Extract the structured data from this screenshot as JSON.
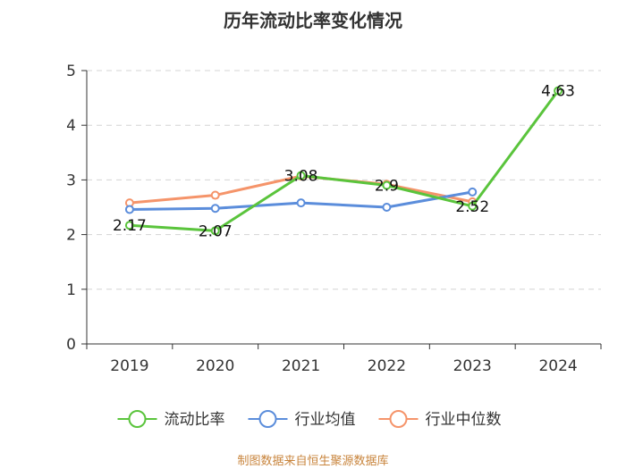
{
  "chart_data": {
    "type": "line",
    "title": "历年流动比率变化情况",
    "categories": [
      "2019",
      "2020",
      "2021",
      "2022",
      "2023",
      "2024"
    ],
    "ylim": [
      0,
      5
    ],
    "yticks": [
      0,
      1,
      2,
      3,
      4,
      5
    ],
    "grid": true,
    "legend_position": "bottom",
    "series": [
      {
        "name": "流动比率",
        "color": "#5ac43c",
        "values": [
          2.17,
          2.07,
          3.08,
          2.9,
          2.52,
          4.63
        ],
        "labels": [
          "2.17",
          "2.07",
          "3.08",
          "2.9",
          "2.52",
          "4.63"
        ]
      },
      {
        "name": "行业均值",
        "color": "#5b8ddb",
        "values": [
          2.46,
          2.48,
          2.58,
          2.5,
          2.78,
          null
        ]
      },
      {
        "name": "行业中位数",
        "color": "#f5946a",
        "values": [
          2.58,
          2.72,
          3.07,
          2.92,
          2.6,
          null
        ]
      }
    ],
    "source": "制图数据来自恒生聚源数据库"
  }
}
